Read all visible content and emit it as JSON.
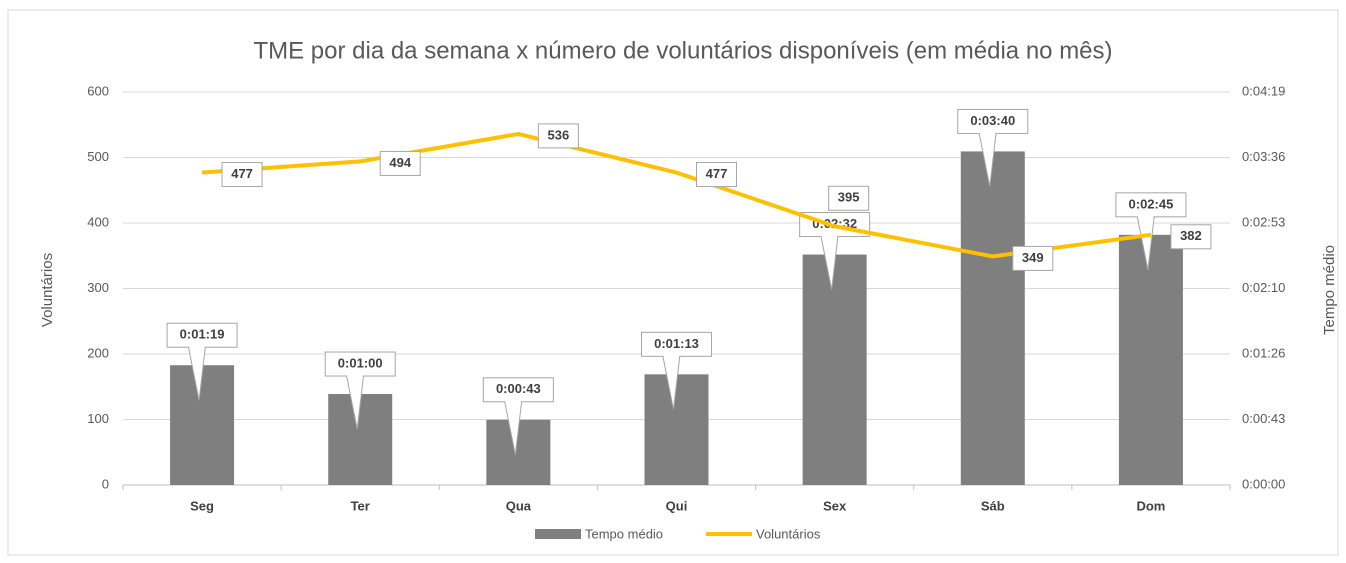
{
  "chart_data": {
    "type": "combo",
    "title": "TME por dia da semana x número de voluntários disponíveis (em média no mês)",
    "y_label": "Voluntários",
    "y2_label": "Tempo médio",
    "categories": [
      "Seg",
      "Ter",
      "Qua",
      "Qui",
      "Sex",
      "Sáb",
      "Dom"
    ],
    "series": [
      {
        "name": "Tempo médio",
        "type": "bar",
        "axis": "y2",
        "color": "#7f7f7f",
        "values": [
          79,
          60,
          43,
          73,
          152,
          220,
          165
        ],
        "value_labels": [
          "0:01:19",
          "0:01:00",
          "0:00:43",
          "0:01:13",
          "0:02:32",
          "0:03:40",
          "0:02:45"
        ]
      },
      {
        "name": "Voluntários",
        "type": "line",
        "axis": "y",
        "color": "#ffc000",
        "values": [
          477,
          494,
          536,
          477,
          395,
          349,
          382
        ]
      }
    ],
    "ylim": [
      0,
      600
    ],
    "yticks": [
      0,
      100,
      200,
      300,
      400,
      500,
      600
    ],
    "y2lim": [
      0,
      259.2
    ],
    "y2ticks": [
      {
        "value": 0,
        "label": "0:00:00"
      },
      {
        "value": 43.2,
        "label": "0:00:43"
      },
      {
        "value": 86.4,
        "label": "0:01:26"
      },
      {
        "value": 129.6,
        "label": "0:02:10"
      },
      {
        "value": 172.8,
        "label": "0:02:53"
      },
      {
        "value": 216,
        "label": "0:03:36"
      },
      {
        "value": 259.2,
        "label": "0:04:19"
      }
    ],
    "grid": true,
    "legend": "bottom"
  }
}
